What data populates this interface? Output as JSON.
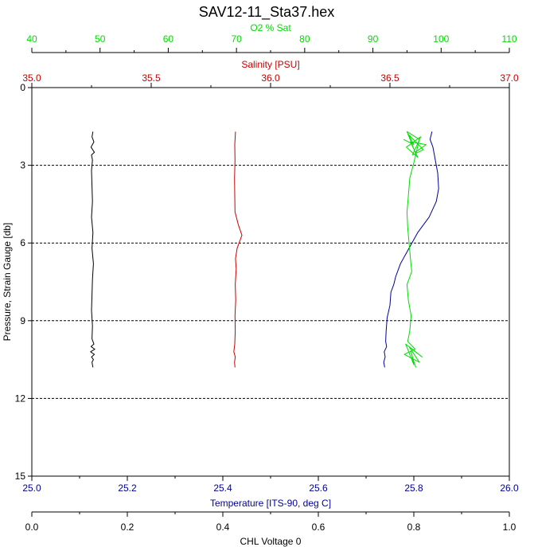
{
  "colors": {
    "o2": "#00dd00",
    "salinity": "#cc0000",
    "temperature": "#000099",
    "chl": "#000000",
    "frame": "#000000",
    "grid": "#000000"
  },
  "chart_data": {
    "type": "line",
    "title": "SAV12-11_Sta37.hex",
    "y_axis": {
      "label": "Pressure, Strain Gauge [db]",
      "range": [
        0,
        15
      ],
      "inverted": true,
      "ticks": [
        "0",
        "3",
        "6",
        "9",
        "12",
        "15"
      ],
      "tick_values": [
        0,
        3,
        6,
        9,
        12,
        15
      ],
      "gridlines": [
        3,
        6,
        9,
        12
      ]
    },
    "x_axes": [
      {
        "id": "o2",
        "label": "O2 % Sat",
        "position": "top-outer",
        "range": [
          40,
          110
        ],
        "ticks": [
          "40",
          "50",
          "60",
          "70",
          "80",
          "90",
          "100",
          "110"
        ],
        "tick_values": [
          40,
          50,
          60,
          70,
          80,
          90,
          100,
          110
        ]
      },
      {
        "id": "salinity",
        "label": "Salinity [PSU]",
        "position": "top-inner",
        "range": [
          35.0,
          37.0
        ],
        "ticks": [
          "35.0",
          "35.5",
          "36.0",
          "36.5",
          "37.0"
        ],
        "tick_values": [
          35.0,
          35.5,
          36.0,
          36.5,
          37.0
        ]
      },
      {
        "id": "temperature",
        "label": "Temperature [ITS-90, deg C]",
        "position": "bottom-inner",
        "range": [
          25.0,
          26.0
        ],
        "ticks": [
          "25.0",
          "25.2",
          "25.4",
          "25.6",
          "25.8",
          "26.0"
        ],
        "tick_values": [
          25.0,
          25.2,
          25.4,
          25.6,
          25.8,
          26.0
        ]
      },
      {
        "id": "chl",
        "label": "CHL Voltage 0",
        "position": "bottom-outer",
        "range": [
          0.0,
          1.0
        ],
        "ticks": [
          "0.0",
          "0.2",
          "0.4",
          "0.6",
          "0.8",
          "1.0"
        ],
        "tick_values": [
          0.0,
          0.2,
          0.4,
          0.6,
          0.8,
          1.0
        ]
      }
    ],
    "series": [
      {
        "id": "chl",
        "axis": "chl",
        "points": [
          [
            0.128,
            1.7
          ],
          [
            0.126,
            1.9
          ],
          [
            0.13,
            2.1
          ],
          [
            0.124,
            2.3
          ],
          [
            0.131,
            2.5
          ],
          [
            0.125,
            2.6
          ],
          [
            0.127,
            2.8
          ],
          [
            0.125,
            3.2
          ],
          [
            0.126,
            3.8
          ],
          [
            0.127,
            4.4
          ],
          [
            0.125,
            5.0
          ],
          [
            0.128,
            5.6
          ],
          [
            0.126,
            6.2
          ],
          [
            0.129,
            6.8
          ],
          [
            0.127,
            7.4
          ],
          [
            0.126,
            8.0
          ],
          [
            0.125,
            8.6
          ],
          [
            0.127,
            9.2
          ],
          [
            0.126,
            9.7
          ],
          [
            0.13,
            9.9
          ],
          [
            0.124,
            10.0
          ],
          [
            0.132,
            10.1
          ],
          [
            0.123,
            10.2
          ],
          [
            0.131,
            10.3
          ],
          [
            0.125,
            10.4
          ],
          [
            0.129,
            10.5
          ],
          [
            0.126,
            10.6
          ],
          [
            0.128,
            10.8
          ]
        ]
      },
      {
        "id": "salinity",
        "axis": "salinity",
        "points": [
          [
            35.853,
            1.7
          ],
          [
            35.85,
            2.2
          ],
          [
            35.851,
            2.8
          ],
          [
            35.849,
            3.5
          ],
          [
            35.85,
            4.2
          ],
          [
            35.851,
            4.8
          ],
          [
            35.865,
            5.3
          ],
          [
            35.88,
            5.7
          ],
          [
            35.86,
            6.2
          ],
          [
            35.853,
            6.6
          ],
          [
            35.856,
            7.0
          ],
          [
            35.852,
            7.6
          ],
          [
            35.854,
            8.2
          ],
          [
            35.851,
            8.8
          ],
          [
            35.852,
            9.4
          ],
          [
            35.85,
            9.9
          ],
          [
            35.846,
            10.2
          ],
          [
            35.852,
            10.4
          ],
          [
            35.849,
            10.6
          ],
          [
            35.851,
            10.8
          ]
        ]
      },
      {
        "id": "temperature",
        "axis": "temperature",
        "points": [
          [
            25.838,
            1.7
          ],
          [
            25.834,
            2.0
          ],
          [
            25.84,
            2.3
          ],
          [
            25.845,
            2.8
          ],
          [
            25.85,
            3.3
          ],
          [
            25.852,
            3.9
          ],
          [
            25.847,
            4.4
          ],
          [
            25.832,
            5.0
          ],
          [
            25.808,
            5.6
          ],
          [
            25.79,
            6.2
          ],
          [
            25.772,
            6.8
          ],
          [
            25.762,
            7.3
          ],
          [
            25.758,
            7.6
          ],
          [
            25.752,
            7.9
          ],
          [
            25.75,
            8.4
          ],
          [
            25.744,
            8.9
          ],
          [
            25.742,
            9.4
          ],
          [
            25.741,
            9.8
          ],
          [
            25.743,
            10.0
          ],
          [
            25.738,
            10.2
          ],
          [
            25.74,
            10.4
          ],
          [
            25.737,
            10.6
          ],
          [
            25.739,
            10.8
          ]
        ]
      },
      {
        "id": "o2",
        "axis": "o2",
        "points": [
          [
            94.5,
            2.0
          ],
          [
            96.0,
            2.2
          ],
          [
            95.2,
            1.8
          ],
          [
            97.4,
            2.4
          ],
          [
            95.8,
            2.6
          ],
          [
            97.0,
            1.9
          ],
          [
            94.9,
            2.3
          ],
          [
            96.6,
            2.7
          ],
          [
            95.5,
            2.1
          ],
          [
            97.8,
            2.2
          ],
          [
            96.2,
            2.5
          ],
          [
            95.0,
            1.7
          ],
          [
            96.8,
            2.0
          ],
          [
            96.0,
            2.9
          ],
          [
            95.4,
            3.5
          ],
          [
            95.2,
            4.2
          ],
          [
            95.0,
            4.8
          ],
          [
            95.1,
            5.4
          ],
          [
            95.3,
            6.0
          ],
          [
            95.5,
            6.6
          ],
          [
            95.7,
            7.1
          ],
          [
            95.0,
            7.6
          ],
          [
            95.2,
            8.2
          ],
          [
            95.6,
            8.8
          ],
          [
            95.4,
            9.4
          ],
          [
            95.1,
            9.8
          ],
          [
            96.2,
            10.1
          ],
          [
            94.6,
            10.3
          ],
          [
            96.8,
            10.6
          ],
          [
            95.3,
            10.0
          ],
          [
            97.2,
            10.4
          ],
          [
            94.8,
            9.9
          ],
          [
            96.0,
            10.7
          ],
          [
            95.6,
            10.2
          ],
          [
            95.9,
            10.5
          ],
          [
            96.3,
            10.8
          ]
        ]
      }
    ]
  }
}
